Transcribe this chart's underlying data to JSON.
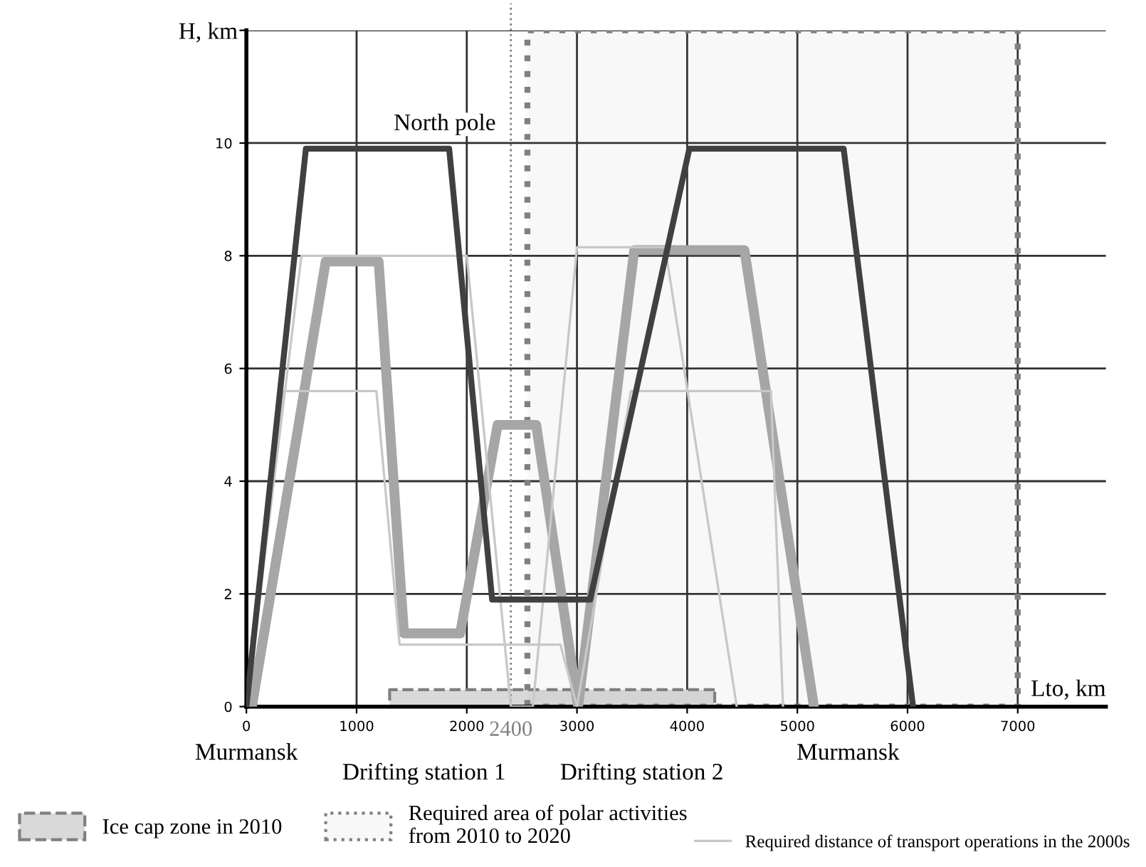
{
  "chart_data": {
    "type": "line",
    "xlabel": "Lto, km",
    "ylabel": "H, km",
    "xlim": [
      0,
      7800
    ],
    "ylim": [
      0,
      12
    ],
    "xticks": [
      0,
      1000,
      2000,
      3000,
      4000,
      5000,
      6000,
      7000
    ],
    "yticks": [
      0,
      2,
      4,
      6,
      8,
      10,
      {
        "value": 12,
        "label": null
      }
    ],
    "grid": true,
    "legend": "bottom",
    "marker": "none",
    "line_style": "solid",
    "series": [
      {
        "color": "#a6a6a6",
        "x": [
          50,
          720,
          1200,
          1430,
          1940,
          2280,
          2630,
          3010,
          3520,
          4520,
          5150
        ],
        "values": [
          0,
          7.9,
          7.9,
          1.3,
          1.3,
          5.0,
          5.0,
          0,
          8.1,
          8.1,
          0
        ]
      },
      {
        "color": "#404040",
        "x": [
          0,
          540,
          1840,
          2230,
          3120,
          4020,
          5420,
          6050
        ],
        "values": [
          0,
          9.9,
          9.9,
          1.9,
          1.9,
          9.9,
          9.9,
          0
        ]
      },
      {
        "name": "Required distance of transport operations in the 2000s",
        "color": "#c8c8c8",
        "x": [
          0,
          330,
          1180,
          1390,
          2850,
          3000,
          3490,
          4760,
          4870
        ],
        "values": [
          0,
          5.6,
          5.6,
          1.1,
          1.1,
          0,
          5.6,
          5.6,
          0
        ]
      },
      {
        "color": "#c8c8c8",
        "x": [
          0,
          500,
          2000,
          2400,
          2600,
          3000,
          3800,
          4450
        ],
        "values": [
          0,
          8,
          8,
          0,
          0,
          8.15,
          8.15,
          0
        ]
      },
      {
        "type": "area",
        "name": "Ice cap zone in 2010",
        "color": "#d9d9d9",
        "x": [
          1300,
          4250
        ],
        "values": [
          0.3,
          0.3
        ]
      }
    ],
    "ref_lines": [
      {
        "axis": "x",
        "value": 2400,
        "label": "2400",
        "color": "#808080",
        "line_style": "dotted"
      }
    ],
    "bands": [
      {
        "axis": "x",
        "from": 2550,
        "to": 7000,
        "label": "Required area of polar activities\nfrom 2010 to 2020",
        "color": "#808080"
      }
    ],
    "annotations": [
      {
        "text": "North pole",
        "x": 1800,
        "y": 10
      },
      "Murmansk",
      "Drifting station 1",
      "Drifting station 2",
      "Murmansk"
    ]
  }
}
